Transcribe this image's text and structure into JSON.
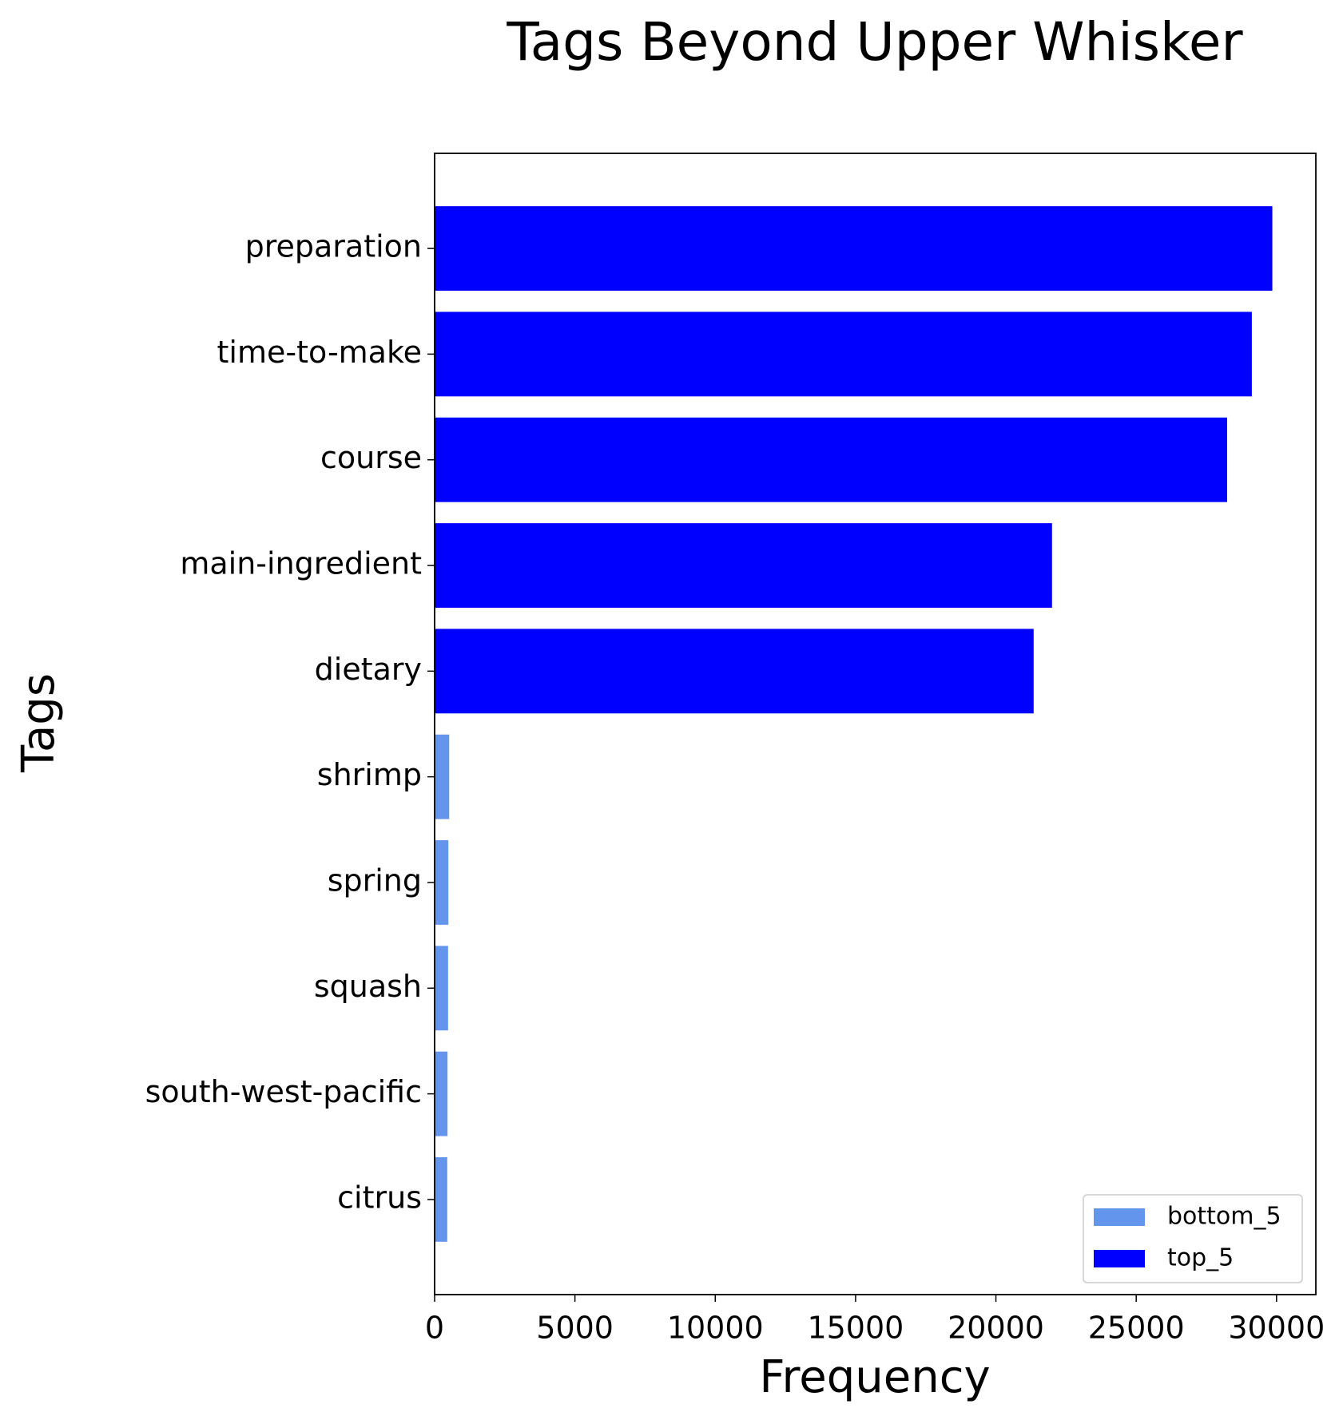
{
  "chart_data": {
    "type": "barh",
    "title": "Tags Beyond Upper Whisker",
    "x_label": "Frequency",
    "y_label": "Tags",
    "categories": [
      "preparation",
      "time-to-make",
      "course",
      "main-ingredient",
      "dietary",
      "shrimp",
      "spring",
      "squash",
      "south-west-pacific",
      "citrus"
    ],
    "series": [
      {
        "name": "bottom_5",
        "color": "#6495ed",
        "values": [
          null,
          null,
          null,
          null,
          null,
          520,
          490,
          480,
          460,
          450
        ]
      },
      {
        "name": "top_5",
        "color": "#0000ff",
        "values": [
          29850,
          29120,
          28240,
          22000,
          21345,
          null,
          null,
          null,
          null,
          null
        ]
      }
    ],
    "xlim": [
      0,
      31400
    ],
    "xticks": [
      0,
      5000,
      10000,
      15000,
      20000,
      25000,
      30000
    ],
    "legend": "lower right"
  }
}
